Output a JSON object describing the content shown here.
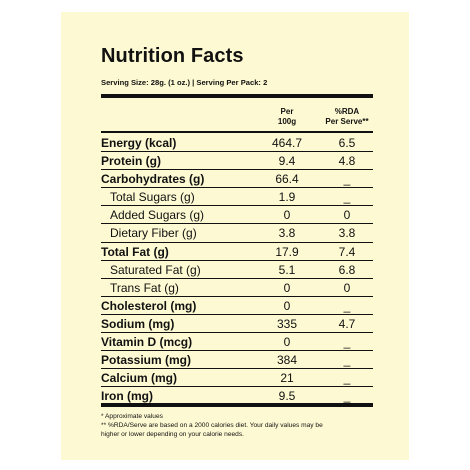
{
  "title": "Nutrition Facts",
  "serving": "Serving Size: 28g. (1 oz.)  |  Serving Per Pack: 2",
  "headers": {
    "per100": [
      "Per",
      "100g"
    ],
    "rda": [
      "%RDA",
      "Per Serve**"
    ]
  },
  "rows": [
    {
      "name": "Energy (kcal)",
      "per100": "464.7",
      "rda": "6.5",
      "bold": true
    },
    {
      "name": "Protein (g)",
      "per100": "9.4",
      "rda": "4.8",
      "bold": true
    },
    {
      "name": "Carbohydrates (g)",
      "per100": "66.4",
      "rda": "_",
      "bold": true
    },
    {
      "name": "Total Sugars (g)",
      "per100": "1.9",
      "rda": "_",
      "sub": true
    },
    {
      "name": "Added Sugars (g)",
      "per100": "0",
      "rda": "0",
      "sub": true
    },
    {
      "name": "Dietary Fiber (g)",
      "per100": "3.8",
      "rda": "3.8",
      "sub": true
    },
    {
      "name": "Total Fat (g)",
      "per100": "17.9",
      "rda": "7.4",
      "bold": true
    },
    {
      "name": "Saturated Fat (g)",
      "per100": "5.1",
      "rda": "6.8",
      "sub": true
    },
    {
      "name": "Trans Fat (g)",
      "per100": "0",
      "rda": "0",
      "sub": true
    },
    {
      "name": "Cholesterol (mg)",
      "per100": "0",
      "rda": "_",
      "bold": true
    },
    {
      "name": "Sodium (mg)",
      "per100": "335",
      "rda": "4.7",
      "bold": true
    },
    {
      "name": "Vitamin D (mcg)",
      "per100": "0",
      "rda": "_",
      "bold": true
    },
    {
      "name": "Potassium (mg)",
      "per100": "384",
      "rda": "_",
      "bold": true
    },
    {
      "name": "Calcium (mg)",
      "per100": "21",
      "rda": "_",
      "bold": true
    },
    {
      "name": "Iron (mg)",
      "per100": "9.5",
      "rda": "_",
      "bold": true
    }
  ],
  "footnotes": [
    "* Approximate values",
    "** %RDA/Serve are based on a 2000 calories diet. Your daily values may be",
    "higher or lower depending on your calorie needs."
  ]
}
